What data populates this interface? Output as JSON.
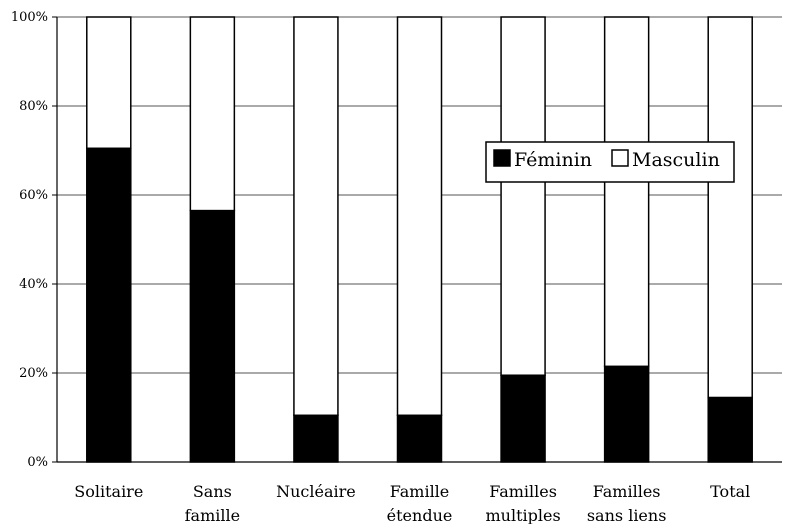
{
  "chart_data": {
    "type": "bar",
    "stacked": true,
    "percent": true,
    "title": "",
    "xlabel": "",
    "ylabel": "",
    "ylim": [
      0,
      100
    ],
    "yticks": [
      "0%",
      "20%",
      "40%",
      "60%",
      "80%",
      "100%"
    ],
    "grid": true,
    "legend_position": "right-center",
    "categories": [
      [
        "Solitaire"
      ],
      [
        "Sans",
        "famille"
      ],
      [
        "Nucléaire"
      ],
      [
        "Famille",
        "étendue"
      ],
      [
        "Familles",
        "multiples"
      ],
      [
        "Familles",
        "sans liens"
      ],
      [
        "Total"
      ]
    ],
    "series": [
      {
        "name": "Féminin",
        "color": "#000000",
        "values": [
          70.5,
          56.5,
          10.5,
          10.5,
          19.5,
          21.5,
          14.5
        ]
      },
      {
        "name": "Masculin",
        "color": "#ffffff",
        "values": [
          29.5,
          43.5,
          89.5,
          89.5,
          80.5,
          78.5,
          85.5
        ]
      }
    ]
  }
}
